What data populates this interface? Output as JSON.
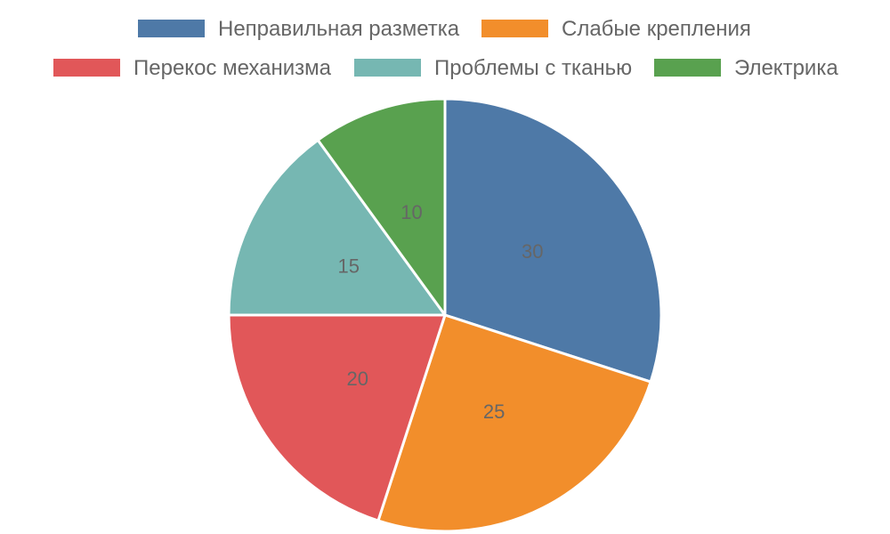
{
  "chart_data": {
    "type": "pie",
    "categories": [
      "Неправильная разметка",
      "Слабые крепления",
      "Перекос механизма",
      "Проблемы с тканью",
      "Электрика"
    ],
    "values": [
      30,
      25,
      20,
      15,
      10
    ],
    "colors": [
      "#4e79a7",
      "#f28e2b",
      "#e15759",
      "#76b7b2",
      "#59a14f"
    ],
    "legend_position": "top",
    "data_labels": true,
    "title": ""
  }
}
